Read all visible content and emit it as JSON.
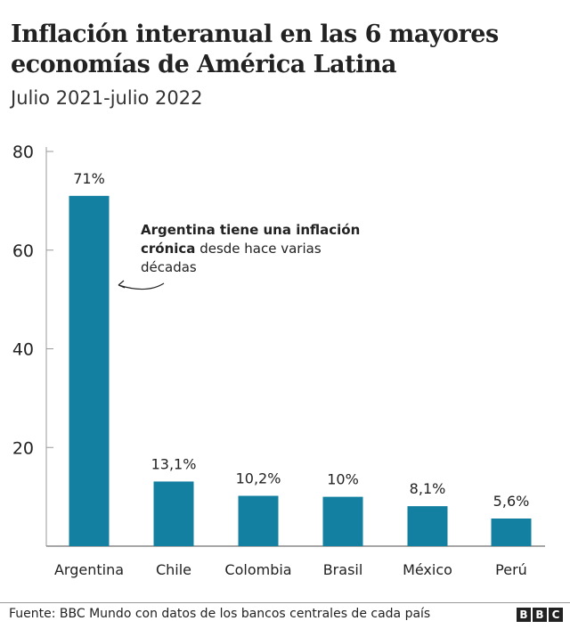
{
  "chart_data": {
    "type": "bar",
    "title": "Inflación interanual en las 6 mayores economías de América Latina",
    "subtitle": "Julio 2021-julio 2022",
    "categories": [
      "Argentina",
      "Chile",
      "Colombia",
      "Brasil",
      "México",
      "Perú"
    ],
    "values": [
      71,
      13.1,
      10.2,
      10,
      8.1,
      5.6
    ],
    "data_labels": [
      "71%",
      "13,1%",
      "10,2%",
      "10%",
      "8,1%",
      "5,6%"
    ],
    "yticks": [
      "20",
      "40",
      "60",
      "80"
    ],
    "ylim": [
      0,
      80
    ],
    "grid": false,
    "bar_color": "#1380A1",
    "annotation": {
      "bold": "Argentina tiene una inflación crónica",
      "line1": "Argentina tiene una inflación",
      "line2_bold": "crónica",
      "line2_rest": " desde hace varias",
      "line3": "décadas"
    }
  },
  "footer": {
    "source": "Fuente: BBC Mundo con datos de los bancos centrales de cada país",
    "logo": [
      "B",
      "B",
      "C"
    ]
  }
}
